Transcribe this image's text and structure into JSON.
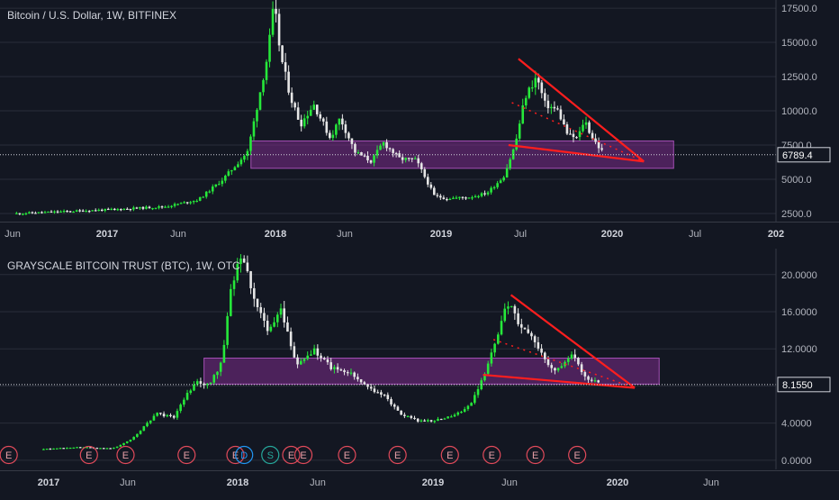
{
  "chart_data": [
    {
      "type": "candlestick",
      "title": "Bitcoin / U.S. Dollar, 1W, BITFINEX",
      "timeframe": "1W",
      "ylim": [
        2300,
        17900
      ],
      "y_ticks": [
        "17500.0",
        "15000.0",
        "12500.0",
        "10000.0",
        "7500.0",
        "5000.0",
        "2500.0"
      ],
      "y_tick_values": [
        17500,
        15000,
        12500,
        10000,
        7500,
        5000,
        2500
      ],
      "x_ticks": [
        "Jun",
        "2017",
        "Jun",
        "2018",
        "Jun",
        "2019",
        "Jul",
        "2020",
        "Jul",
        "202"
      ],
      "last_price": "6789.4",
      "last_value": 6789.4,
      "price_path": [
        [
          2016.4,
          2500
        ],
        [
          2017.0,
          2800
        ],
        [
          2017.3,
          3000
        ],
        [
          2017.5,
          3500
        ],
        [
          2017.65,
          5000
        ],
        [
          2017.8,
          7000
        ],
        [
          2017.92,
          14000
        ],
        [
          2017.96,
          17800
        ],
        [
          2018.0,
          14000
        ],
        [
          2018.06,
          11000
        ],
        [
          2018.12,
          9000
        ],
        [
          2018.2,
          10500
        ],
        [
          2018.3,
          8000
        ],
        [
          2018.36,
          9500
        ],
        [
          2018.45,
          7000
        ],
        [
          2018.55,
          6300
        ],
        [
          2018.62,
          7700
        ],
        [
          2018.72,
          6500
        ],
        [
          2018.82,
          6400
        ],
        [
          2018.88,
          5000
        ],
        [
          2018.93,
          3800
        ],
        [
          2019.0,
          3600
        ],
        [
          2019.15,
          3700
        ],
        [
          2019.25,
          4000
        ],
        [
          2019.35,
          5200
        ],
        [
          2019.42,
          7500
        ],
        [
          2019.48,
          11000
        ],
        [
          2019.55,
          12500
        ],
        [
          2019.6,
          10500
        ],
        [
          2019.68,
          10000
        ],
        [
          2019.74,
          8200
        ],
        [
          2019.8,
          8000
        ],
        [
          2019.84,
          9400
        ],
        [
          2019.88,
          8200
        ],
        [
          2019.93,
          7300
        ],
        [
          2019.96,
          6789
        ]
      ],
      "annotations": [
        {
          "kind": "zone",
          "y0": 5800,
          "y1": 7800,
          "x0": 2017.82,
          "x1": 2020.38,
          "color": "#7b2c8a"
        },
        {
          "kind": "line",
          "color": "#ff1e1e",
          "points": [
            [
              2019.44,
              13800
            ],
            [
              2020.2,
              6300
            ]
          ]
        },
        {
          "kind": "line",
          "color": "#ff1e1e",
          "points": [
            [
              2019.38,
              7500
            ],
            [
              2020.2,
              6300
            ]
          ]
        },
        {
          "kind": "dotted",
          "color": "#ff1e1e",
          "points": [
            [
              2019.4,
              10600
            ],
            [
              2020.2,
              6300
            ]
          ]
        }
      ]
    },
    {
      "type": "candlestick",
      "title": "GRAYSCALE BITCOIN TRUST (BTC), 1W, OTC",
      "timeframe": "1W",
      "ylim": [
        -0.5,
        22.5
      ],
      "y_ticks": [
        "20.0000",
        "16.0000",
        "12.0000",
        "8.0000",
        "4.0000",
        "0.0000"
      ],
      "y_tick_values": [
        20,
        16,
        12,
        8,
        4,
        0
      ],
      "x_ticks": [
        "2017",
        "Jun",
        "2018",
        "Jun",
        "2019",
        "Jun",
        "2020",
        "Jun"
      ],
      "last_price": "8.1550",
      "last_value": 8.155,
      "price_path": [
        [
          2016.8,
          1.2
        ],
        [
          2017.0,
          1.4
        ],
        [
          2017.2,
          1.3
        ],
        [
          2017.3,
          2.2
        ],
        [
          2017.45,
          5.0
        ],
        [
          2017.55,
          4.6
        ],
        [
          2017.6,
          6.5
        ],
        [
          2017.68,
          8.5
        ],
        [
          2017.75,
          8.0
        ],
        [
          2017.82,
          10.5
        ],
        [
          2017.88,
          19.0
        ],
        [
          2017.94,
          22.5
        ],
        [
          2018.0,
          18.0
        ],
        [
          2018.08,
          14.0
        ],
        [
          2018.16,
          16.0
        ],
        [
          2018.25,
          10.5
        ],
        [
          2018.35,
          11.8
        ],
        [
          2018.45,
          10.0
        ],
        [
          2018.55,
          9.5
        ],
        [
          2018.65,
          8.0
        ],
        [
          2018.75,
          7.0
        ],
        [
          2018.85,
          5.0
        ],
        [
          2018.95,
          4.2
        ],
        [
          2019.05,
          4.3
        ],
        [
          2019.15,
          4.8
        ],
        [
          2019.25,
          6.0
        ],
        [
          2019.32,
          9.0
        ],
        [
          2019.4,
          13.0
        ],
        [
          2019.46,
          17.0
        ],
        [
          2019.52,
          15.0
        ],
        [
          2019.6,
          13.0
        ],
        [
          2019.66,
          11.5
        ],
        [
          2019.72,
          9.5
        ],
        [
          2019.78,
          10.2
        ],
        [
          2019.84,
          11.5
        ],
        [
          2019.88,
          9.5
        ],
        [
          2019.94,
          8.6
        ],
        [
          2019.99,
          8.155
        ]
      ],
      "events": [
        {
          "label": "E",
          "x": 2016.6,
          "kind": "earnings"
        },
        {
          "label": "E",
          "x": 2017.06,
          "kind": "earnings"
        },
        {
          "label": "E",
          "x": 2017.27,
          "kind": "earnings"
        },
        {
          "label": "E",
          "x": 2017.62,
          "kind": "earnings"
        },
        {
          "label": "E",
          "x": 2017.9,
          "kind": "earnings"
        },
        {
          "label": "D",
          "x": 2017.95,
          "kind": "dividend"
        },
        {
          "label": "S",
          "x": 2018.1,
          "kind": "split"
        },
        {
          "label": "E",
          "x": 2018.22,
          "kind": "earnings"
        },
        {
          "label": "E",
          "x": 2018.29,
          "kind": "earnings"
        },
        {
          "label": "E",
          "x": 2018.54,
          "kind": "earnings"
        },
        {
          "label": "E",
          "x": 2018.83,
          "kind": "earnings"
        },
        {
          "label": "E",
          "x": 2019.13,
          "kind": "earnings"
        },
        {
          "label": "E",
          "x": 2019.37,
          "kind": "earnings"
        },
        {
          "label": "E",
          "x": 2019.62,
          "kind": "earnings"
        },
        {
          "label": "E",
          "x": 2019.86,
          "kind": "earnings"
        }
      ],
      "annotations": [
        {
          "kind": "zone",
          "y0": 8.2,
          "y1": 11.0,
          "x0": 2017.72,
          "x1": 2020.33,
          "color": "#7b2c8a"
        },
        {
          "kind": "line",
          "color": "#ff1e1e",
          "points": [
            [
              2019.48,
              17.8
            ],
            [
              2020.19,
              7.8
            ]
          ]
        },
        {
          "kind": "line",
          "color": "#ff1e1e",
          "points": [
            [
              2019.32,
              9.2
            ],
            [
              2020.19,
              7.8
            ]
          ]
        },
        {
          "kind": "dotted",
          "color": "#ff1e1e",
          "points": [
            [
              2019.38,
              13.0
            ],
            [
              2020.19,
              7.8
            ]
          ]
        }
      ]
    }
  ],
  "colors": {
    "background": "#131722",
    "up": "#26e83a",
    "down": "#e6e6e6",
    "axis_text": "#b2b5be",
    "grid": "#2a2e39",
    "trend": "#ff1e1e",
    "zone": "#7b2c8a"
  }
}
